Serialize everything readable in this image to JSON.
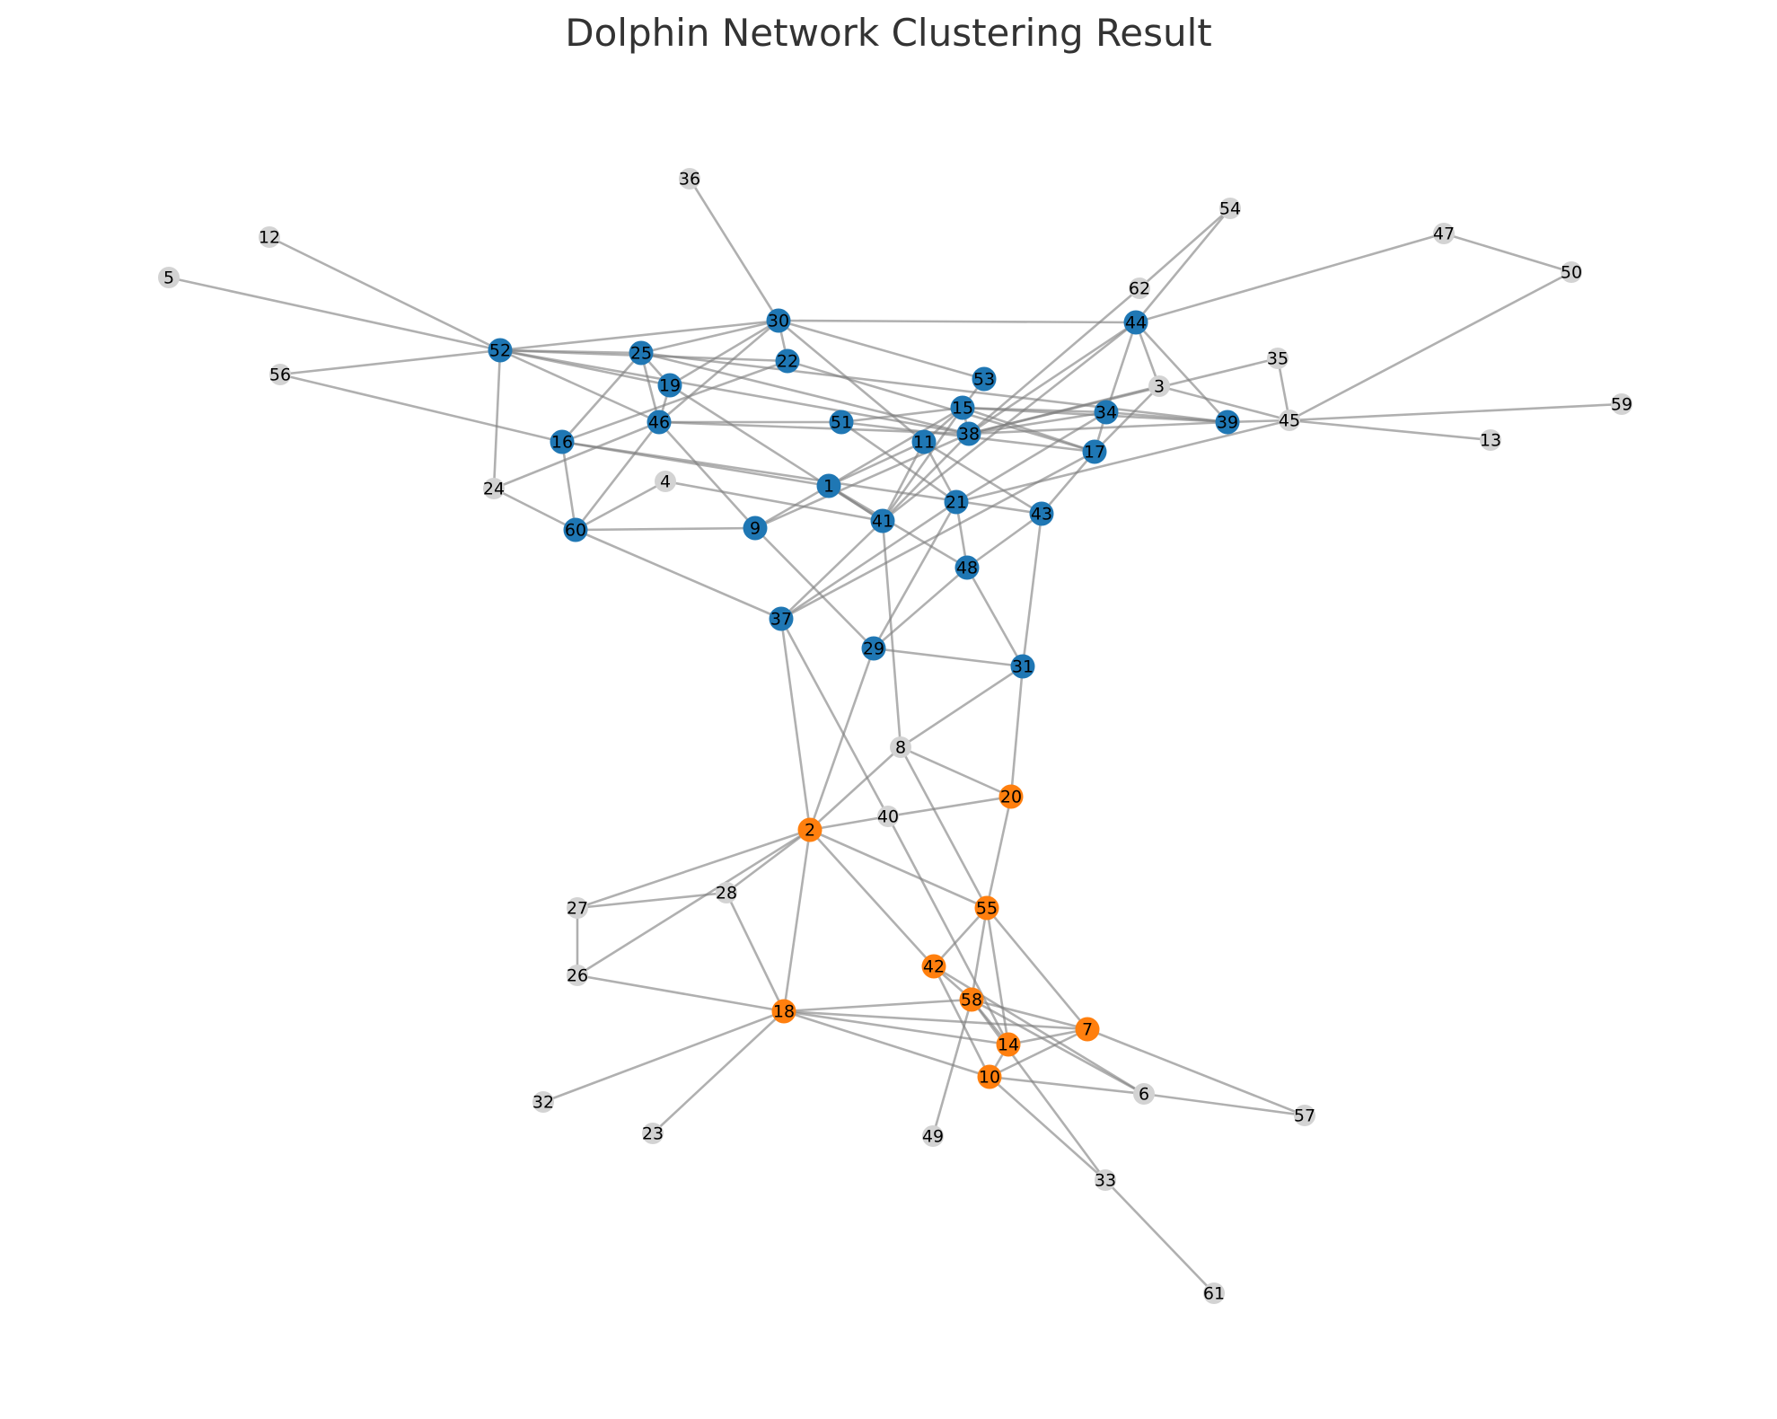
{
  "title": "Dolphin Network Clustering Result",
  "colors": {
    "cluster_blue": "#1f77b4",
    "cluster_orange": "#ff7f0e",
    "unclustered": "#d3d3d3"
  },
  "nodes": [
    {
      "id": "1",
      "cluster": "blue"
    },
    {
      "id": "2",
      "cluster": "orange"
    },
    {
      "id": "3",
      "cluster": "none"
    },
    {
      "id": "4",
      "cluster": "none"
    },
    {
      "id": "5",
      "cluster": "none"
    },
    {
      "id": "6",
      "cluster": "none"
    },
    {
      "id": "7",
      "cluster": "orange"
    },
    {
      "id": "8",
      "cluster": "none"
    },
    {
      "id": "9",
      "cluster": "blue"
    },
    {
      "id": "10",
      "cluster": "orange"
    },
    {
      "id": "11",
      "cluster": "blue"
    },
    {
      "id": "12",
      "cluster": "none"
    },
    {
      "id": "13",
      "cluster": "none"
    },
    {
      "id": "14",
      "cluster": "orange"
    },
    {
      "id": "15",
      "cluster": "blue"
    },
    {
      "id": "16",
      "cluster": "blue"
    },
    {
      "id": "17",
      "cluster": "blue"
    },
    {
      "id": "18",
      "cluster": "orange"
    },
    {
      "id": "19",
      "cluster": "blue"
    },
    {
      "id": "20",
      "cluster": "orange"
    },
    {
      "id": "21",
      "cluster": "blue"
    },
    {
      "id": "22",
      "cluster": "blue"
    },
    {
      "id": "23",
      "cluster": "none"
    },
    {
      "id": "24",
      "cluster": "none"
    },
    {
      "id": "25",
      "cluster": "blue"
    },
    {
      "id": "26",
      "cluster": "none"
    },
    {
      "id": "27",
      "cluster": "none"
    },
    {
      "id": "28",
      "cluster": "none"
    },
    {
      "id": "29",
      "cluster": "blue"
    },
    {
      "id": "30",
      "cluster": "blue"
    },
    {
      "id": "31",
      "cluster": "blue"
    },
    {
      "id": "32",
      "cluster": "none"
    },
    {
      "id": "33",
      "cluster": "none"
    },
    {
      "id": "34",
      "cluster": "blue"
    },
    {
      "id": "35",
      "cluster": "none"
    },
    {
      "id": "36",
      "cluster": "none"
    },
    {
      "id": "37",
      "cluster": "blue"
    },
    {
      "id": "38",
      "cluster": "blue"
    },
    {
      "id": "39",
      "cluster": "blue"
    },
    {
      "id": "40",
      "cluster": "none"
    },
    {
      "id": "41",
      "cluster": "blue"
    },
    {
      "id": "42",
      "cluster": "orange"
    },
    {
      "id": "43",
      "cluster": "blue"
    },
    {
      "id": "44",
      "cluster": "blue"
    },
    {
      "id": "45",
      "cluster": "none"
    },
    {
      "id": "46",
      "cluster": "blue"
    },
    {
      "id": "47",
      "cluster": "none"
    },
    {
      "id": "48",
      "cluster": "blue"
    },
    {
      "id": "49",
      "cluster": "none"
    },
    {
      "id": "50",
      "cluster": "none"
    },
    {
      "id": "51",
      "cluster": "blue"
    },
    {
      "id": "52",
      "cluster": "blue"
    },
    {
      "id": "53",
      "cluster": "blue"
    },
    {
      "id": "54",
      "cluster": "none"
    },
    {
      "id": "55",
      "cluster": "orange"
    },
    {
      "id": "56",
      "cluster": "none"
    },
    {
      "id": "57",
      "cluster": "none"
    },
    {
      "id": "58",
      "cluster": "orange"
    },
    {
      "id": "59",
      "cluster": "none"
    },
    {
      "id": "60",
      "cluster": "blue"
    },
    {
      "id": "61",
      "cluster": "none"
    },
    {
      "id": "62",
      "cluster": "none"
    }
  ],
  "edges": [
    [
      "36",
      "30"
    ],
    [
      "12",
      "52"
    ],
    [
      "5",
      "52"
    ],
    [
      "56",
      "52"
    ],
    [
      "56",
      "16"
    ],
    [
      "52",
      "30"
    ],
    [
      "52",
      "25"
    ],
    [
      "52",
      "19"
    ],
    [
      "52",
      "22"
    ],
    [
      "52",
      "46"
    ],
    [
      "52",
      "24"
    ],
    [
      "52",
      "38"
    ],
    [
      "25",
      "30"
    ],
    [
      "25",
      "19"
    ],
    [
      "25",
      "46"
    ],
    [
      "25",
      "16"
    ],
    [
      "25",
      "38"
    ],
    [
      "25",
      "39"
    ],
    [
      "30",
      "19"
    ],
    [
      "30",
      "22"
    ],
    [
      "30",
      "46"
    ],
    [
      "30",
      "44"
    ],
    [
      "30",
      "53"
    ],
    [
      "30",
      "11"
    ],
    [
      "22",
      "16"
    ],
    [
      "22",
      "17"
    ],
    [
      "19",
      "46"
    ],
    [
      "19",
      "41"
    ],
    [
      "46",
      "51"
    ],
    [
      "46",
      "60"
    ],
    [
      "46",
      "9"
    ],
    [
      "46",
      "38"
    ],
    [
      "46",
      "24"
    ],
    [
      "16",
      "60"
    ],
    [
      "16",
      "1"
    ],
    [
      "16",
      "43"
    ],
    [
      "4",
      "60"
    ],
    [
      "4",
      "41"
    ],
    [
      "60",
      "9"
    ],
    [
      "60",
      "37"
    ],
    [
      "24",
      "60"
    ],
    [
      "9",
      "1"
    ],
    [
      "9",
      "29"
    ],
    [
      "9",
      "38"
    ],
    [
      "51",
      "21"
    ],
    [
      "51",
      "17"
    ],
    [
      "51",
      "15"
    ],
    [
      "1",
      "41"
    ],
    [
      "1",
      "15"
    ],
    [
      "1",
      "48"
    ],
    [
      "41",
      "37"
    ],
    [
      "41",
      "8"
    ],
    [
      "41",
      "15"
    ],
    [
      "41",
      "11"
    ],
    [
      "41",
      "38"
    ],
    [
      "41",
      "44"
    ],
    [
      "11",
      "21"
    ],
    [
      "11",
      "43"
    ],
    [
      "11",
      "1"
    ],
    [
      "21",
      "48"
    ],
    [
      "21",
      "29"
    ],
    [
      "21",
      "34"
    ],
    [
      "21",
      "45"
    ],
    [
      "21",
      "37"
    ],
    [
      "43",
      "48"
    ],
    [
      "43",
      "31"
    ],
    [
      "43",
      "17"
    ],
    [
      "48",
      "29"
    ],
    [
      "48",
      "31"
    ],
    [
      "15",
      "34"
    ],
    [
      "15",
      "39"
    ],
    [
      "15",
      "17"
    ],
    [
      "15",
      "53"
    ],
    [
      "15",
      "38"
    ],
    [
      "15",
      "11"
    ],
    [
      "38",
      "34"
    ],
    [
      "38",
      "39"
    ],
    [
      "38",
      "3"
    ],
    [
      "38",
      "35"
    ],
    [
      "38",
      "62"
    ],
    [
      "38",
      "44"
    ],
    [
      "34",
      "39"
    ],
    [
      "34",
      "17"
    ],
    [
      "34",
      "44"
    ],
    [
      "3",
      "44"
    ],
    [
      "3",
      "45"
    ],
    [
      "3",
      "17"
    ],
    [
      "44",
      "54"
    ],
    [
      "44",
      "47"
    ],
    [
      "44",
      "39"
    ],
    [
      "62",
      "54"
    ],
    [
      "47",
      "50"
    ],
    [
      "50",
      "45"
    ],
    [
      "35",
      "45"
    ],
    [
      "39",
      "45"
    ],
    [
      "45",
      "59"
    ],
    [
      "45",
      "13"
    ],
    [
      "17",
      "37"
    ],
    [
      "31",
      "8"
    ],
    [
      "31",
      "20"
    ],
    [
      "29",
      "31"
    ],
    [
      "29",
      "2"
    ],
    [
      "37",
      "2"
    ],
    [
      "37",
      "40"
    ],
    [
      "8",
      "20"
    ],
    [
      "8",
      "55"
    ],
    [
      "8",
      "2"
    ],
    [
      "20",
      "40"
    ],
    [
      "20",
      "55"
    ],
    [
      "40",
      "2"
    ],
    [
      "40",
      "14"
    ],
    [
      "2",
      "28"
    ],
    [
      "2",
      "27"
    ],
    [
      "2",
      "26"
    ],
    [
      "2",
      "18"
    ],
    [
      "2",
      "42"
    ],
    [
      "2",
      "55"
    ],
    [
      "27",
      "28"
    ],
    [
      "27",
      "26"
    ],
    [
      "26",
      "18"
    ],
    [
      "28",
      "18"
    ],
    [
      "18",
      "58"
    ],
    [
      "18",
      "7"
    ],
    [
      "18",
      "14"
    ],
    [
      "18",
      "10"
    ],
    [
      "18",
      "32"
    ],
    [
      "18",
      "23"
    ],
    [
      "55",
      "42"
    ],
    [
      "55",
      "58"
    ],
    [
      "55",
      "14"
    ],
    [
      "55",
      "7"
    ],
    [
      "42",
      "58"
    ],
    [
      "42",
      "10"
    ],
    [
      "42",
      "6"
    ],
    [
      "58",
      "14"
    ],
    [
      "58",
      "7"
    ],
    [
      "58",
      "49"
    ],
    [
      "58",
      "33"
    ],
    [
      "58",
      "6"
    ],
    [
      "14",
      "7"
    ],
    [
      "14",
      "10"
    ],
    [
      "7",
      "10"
    ],
    [
      "7",
      "57"
    ],
    [
      "10",
      "6"
    ],
    [
      "10",
      "33"
    ],
    [
      "6",
      "57"
    ],
    [
      "33",
      "61"
    ]
  ]
}
